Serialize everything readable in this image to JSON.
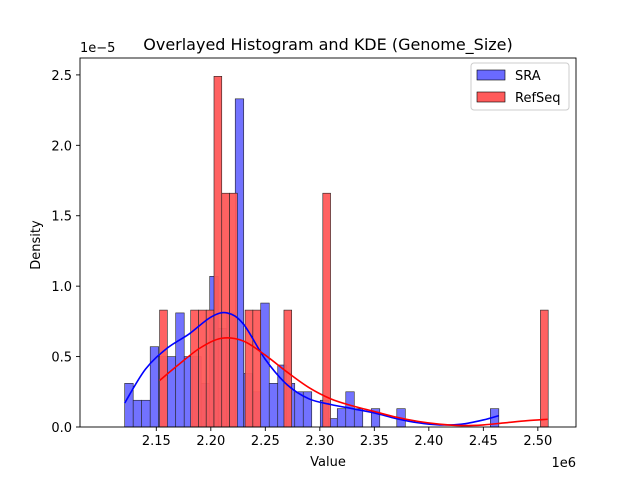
{
  "chart_data": {
    "type": "bar",
    "title": "Overlayed Histogram and KDE (Genome_Size)",
    "xlabel": "Value",
    "ylabel": "Density",
    "x_offset_label": "1e6",
    "y_offset_label": "1e−5",
    "xlim": [
      2080000,
      2535000
    ],
    "ylim": [
      0,
      2.62e-05
    ],
    "x_ticks": [
      2150000,
      2200000,
      2250000,
      2300000,
      2350000,
      2400000,
      2450000,
      2500000
    ],
    "x_tick_labels": [
      "2.15",
      "2.20",
      "2.25",
      "2.30",
      "2.35",
      "2.40",
      "2.45",
      "2.50"
    ],
    "y_ticks": [
      0,
      5e-06,
      1e-05,
      1.5e-05,
      2e-05,
      2.5e-05
    ],
    "y_tick_labels": [
      "0.0",
      "0.5",
      "1.0",
      "1.5",
      "2.0",
      "2.5"
    ],
    "grid": false,
    "legend_position": "top-right",
    "series": [
      {
        "name": "SRA",
        "color": "#0000ff",
        "bar_fill": "#6a6aff",
        "bin_edges": [
          2121000,
          2128800,
          2136600,
          2144400,
          2152200,
          2160000,
          2167800,
          2175600,
          2183400,
          2191200,
          2199000,
          2206800,
          2214600,
          2222400,
          2230200,
          2238000,
          2245800,
          2253600,
          2261400,
          2269200,
          2277000,
          2284800,
          2292600,
          2300400,
          2308200,
          2316000,
          2323800,
          2331600,
          2339400,
          2347200,
          2355000,
          2362800,
          2370600,
          2378400,
          2386200,
          2394000,
          2401800,
          2409600,
          2417400,
          2425200,
          2433000,
          2440800,
          2448600,
          2456400,
          2464200
        ],
        "values": [
          3.1e-06,
          1.9e-06,
          1.9e-06,
          5.7e-06,
          5e-06,
          5e-06,
          8.1e-06,
          5e-06,
          5e-06,
          3.1e-06,
          1.07e-05,
          7e-06,
          8.1e-06,
          2.33e-05,
          3.8e-06,
          2.5e-06,
          8.8e-06,
          3.1e-06,
          4.4e-06,
          3.1e-06,
          2.5e-06,
          2.5e-06,
          0,
          1.9e-06,
          6e-07,
          1.3e-06,
          2.5e-06,
          1.3e-06,
          0,
          1.3e-06,
          0,
          0,
          1.3e-06,
          0,
          0,
          0,
          0,
          0,
          0,
          0,
          0,
          0,
          0,
          1.3e-06
        ],
        "kde": {
          "x": [
            2121000,
            2140000,
            2160000,
            2180000,
            2200000,
            2215000,
            2230000,
            2250000,
            2270000,
            2290000,
            2310000,
            2330000,
            2350000,
            2370000,
            2390000,
            2410000,
            2430000,
            2450000,
            2464000
          ],
          "y": [
            1.7e-06,
            4.1e-06,
            5.6e-06,
            6.6e-06,
            7.8e-06,
            8.1e-06,
            7.3e-06,
            4.8e-06,
            3e-06,
            2e-06,
            1.6e-06,
            1.3e-06,
            1e-06,
            6e-07,
            3e-07,
            1.5e-07,
            2e-07,
            5e-07,
            8e-07
          ]
        }
      },
      {
        "name": "RefSeq",
        "color": "#ff0000",
        "bar_fill": "#ff5a5a",
        "bin_edges": [
          2153000,
          2160130,
          2167260,
          2174390,
          2181520,
          2188650,
          2195780,
          2202910,
          2210040,
          2217170,
          2224300,
          2231430,
          2238560,
          2245690,
          2252820,
          2259950,
          2267080,
          2274210,
          2281340,
          2288470,
          2295600,
          2302730,
          2309860,
          2316990,
          2324120,
          2331250,
          2338380,
          2345510,
          2352640,
          2359770,
          2366900,
          2374030,
          2381160,
          2388290,
          2395420,
          2402550,
          2409680,
          2416810,
          2423940,
          2431070,
          2438200,
          2445330,
          2452460,
          2459590,
          2466720,
          2473850,
          2480980,
          2488110,
          2495240,
          2502370,
          2509500
        ],
        "values": [
          8.3e-06,
          0,
          0,
          0,
          8.3e-06,
          8.3e-06,
          8.3e-06,
          2.49e-05,
          1.66e-05,
          1.66e-05,
          0,
          8.3e-06,
          8.3e-06,
          0,
          0,
          0,
          8.3e-06,
          0,
          0,
          0,
          0,
          1.66e-05,
          0,
          0,
          0,
          0,
          0,
          0,
          0,
          0,
          0,
          0,
          0,
          0,
          0,
          0,
          0,
          0,
          0,
          0,
          0,
          0,
          0,
          0,
          0,
          0,
          0,
          0,
          0,
          8.3e-06
        ],
        "kde": {
          "x": [
            2153000,
            2170000,
            2190000,
            2210000,
            2230000,
            2250000,
            2270000,
            2290000,
            2310000,
            2330000,
            2350000,
            2370000,
            2390000,
            2410000,
            2430000,
            2450000,
            2470000,
            2490000,
            2509000
          ],
          "y": [
            3.3e-06,
            4.4e-06,
            5.6e-06,
            6.3e-06,
            6.1e-06,
            5.1e-06,
            3.9e-06,
            2.8e-06,
            2e-06,
            1.5e-06,
            1.1e-06,
            7e-07,
            4e-07,
            2e-07,
            1e-07,
            1.5e-07,
            3e-07,
            4.5e-07,
            5.5e-07
          ]
        }
      }
    ]
  }
}
